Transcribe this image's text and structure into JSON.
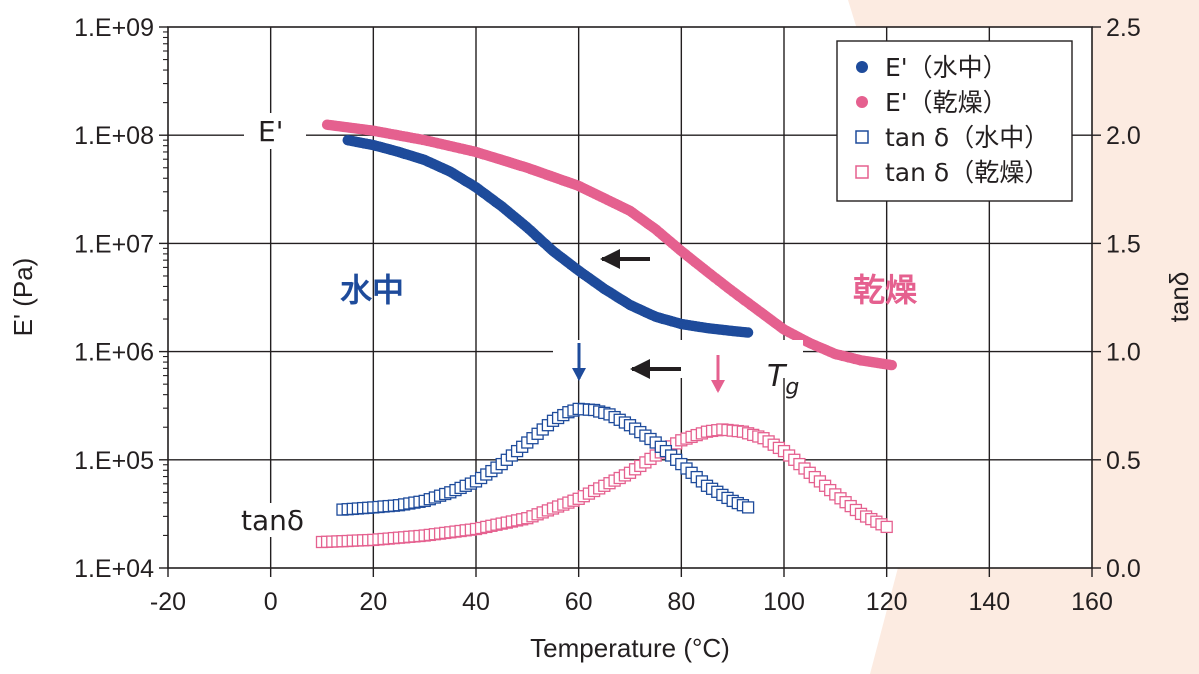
{
  "colors": {
    "background_accent": "#fcebe1",
    "water": "#1e4b9b",
    "dry": "#e5608f",
    "arrow": "#231f20",
    "grid": "#231f20"
  },
  "chart_data": {
    "type": "scatter",
    "xlabel": "Temperature (°C)",
    "ylabel_left": "E' (Pa)",
    "ylabel_right": "tanδ",
    "xlim": [
      -20,
      160
    ],
    "ylim_left": [
      10000,
      1000000000
    ],
    "ylim_left_scale": "log",
    "ylim_right": [
      0.0,
      2.5
    ],
    "grid": true,
    "legend_position": "top-right",
    "x_ticks": [
      "-20",
      "0",
      "20",
      "40",
      "60",
      "80",
      "100",
      "120",
      "140",
      "160"
    ],
    "y_left_ticks": [
      "1.E+04",
      "1.E+05",
      "1.E+06",
      "1.E+07",
      "1.E+08",
      "1.E+09"
    ],
    "y_right_ticks": [
      "0.0",
      "0.5",
      "1.0",
      "1.5",
      "2.0",
      "2.5"
    ],
    "legend": [
      {
        "label": "E'（水中）",
        "marker": "filled-circle",
        "color": "#1e4b9b"
      },
      {
        "label": "E'（乾燥）",
        "marker": "filled-circle",
        "color": "#e5608f"
      },
      {
        "label": "tan δ（水中）",
        "marker": "open-square",
        "color": "#1e4b9b"
      },
      {
        "label": "tan δ（乾燥）",
        "marker": "open-square",
        "color": "#e5608f"
      }
    ],
    "annotations": {
      "e_prime": "E'",
      "water": "水中",
      "dry": "乾燥",
      "tg_main": "T",
      "tg_sub": "g",
      "tan_delta": "tanδ"
    },
    "series": [
      {
        "name": "E'（水中）",
        "axis": "left",
        "marker": "filled-circle",
        "color": "#1e4b9b",
        "points": [
          [
            15,
            90000000.0
          ],
          [
            20,
            81000000.0
          ],
          [
            25,
            70000000.0
          ],
          [
            30,
            59000000.0
          ],
          [
            35,
            46000000.0
          ],
          [
            40,
            33000000.0
          ],
          [
            45,
            22000000.0
          ],
          [
            50,
            14000000.0
          ],
          [
            55,
            8500000.0
          ],
          [
            60,
            5600000.0
          ],
          [
            65,
            3800000.0
          ],
          [
            70,
            2700000.0
          ],
          [
            75,
            2100000.0
          ],
          [
            80,
            1800000.0
          ],
          [
            85,
            1650000.0
          ],
          [
            90,
            1550000.0
          ],
          [
            93,
            1500000.0
          ]
        ]
      },
      {
        "name": "E'（乾燥）",
        "axis": "left",
        "marker": "filled-circle",
        "color": "#e5608f",
        "points": [
          [
            11,
            125000000.0
          ],
          [
            20,
            110000000.0
          ],
          [
            30,
            90000000.0
          ],
          [
            40,
            70000000.0
          ],
          [
            50,
            50000000.0
          ],
          [
            60,
            34000000.0
          ],
          [
            70,
            20000000.0
          ],
          [
            75,
            13500000.0
          ],
          [
            80,
            8500000.0
          ],
          [
            85,
            5500000.0
          ],
          [
            90,
            3600000.0
          ],
          [
            95,
            2400000.0
          ],
          [
            100,
            1600000.0
          ],
          [
            105,
            1200000.0
          ],
          [
            110,
            950000.0
          ],
          [
            115,
            830000.0
          ],
          [
            121,
            750000.0
          ]
        ]
      },
      {
        "name": "tan δ（水中）",
        "axis": "right",
        "marker": "open-square",
        "color": "#1e4b9b",
        "points": [
          [
            14,
            0.27
          ],
          [
            20,
            0.28
          ],
          [
            25,
            0.29
          ],
          [
            30,
            0.31
          ],
          [
            35,
            0.35
          ],
          [
            40,
            0.4
          ],
          [
            45,
            0.48
          ],
          [
            50,
            0.58
          ],
          [
            55,
            0.68
          ],
          [
            58,
            0.72
          ],
          [
            60,
            0.735
          ],
          [
            63,
            0.73
          ],
          [
            66,
            0.71
          ],
          [
            70,
            0.66
          ],
          [
            75,
            0.58
          ],
          [
            80,
            0.48
          ],
          [
            85,
            0.38
          ],
          [
            90,
            0.31
          ],
          [
            93,
            0.28
          ]
        ]
      },
      {
        "name": "tan δ（乾燥）",
        "axis": "right",
        "marker": "open-square",
        "color": "#e5608f",
        "points": [
          [
            10,
            0.12
          ],
          [
            20,
            0.13
          ],
          [
            30,
            0.15
          ],
          [
            40,
            0.18
          ],
          [
            50,
            0.23
          ],
          [
            60,
            0.32
          ],
          [
            70,
            0.44
          ],
          [
            75,
            0.52
          ],
          [
            80,
            0.59
          ],
          [
            85,
            0.63
          ],
          [
            88,
            0.64
          ],
          [
            92,
            0.63
          ],
          [
            96,
            0.6
          ],
          [
            100,
            0.54
          ],
          [
            105,
            0.44
          ],
          [
            110,
            0.34
          ],
          [
            115,
            0.25
          ],
          [
            120,
            0.19
          ]
        ]
      }
    ]
  }
}
